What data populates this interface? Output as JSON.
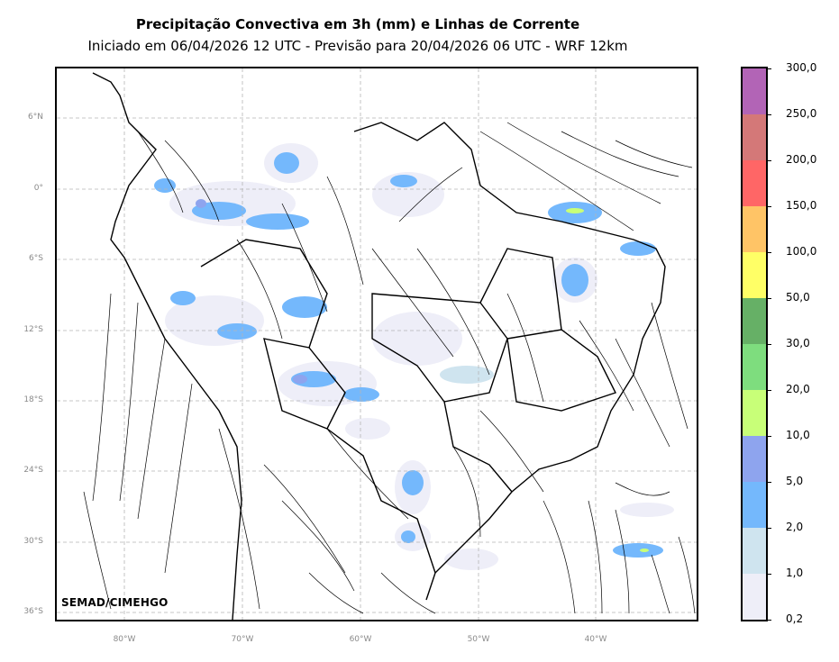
{
  "header": {
    "title": "Precipitação Convectiva em 3h (mm) e Linhas de Corrente",
    "subtitle": "Iniciado em 06/04/2026 12 UTC - Previsão para 20/04/2026 06 UTC - WRF 12km"
  },
  "map": {
    "lat_ticks": [
      "6°N",
      "0°",
      "6°S",
      "12°S",
      "18°S",
      "24°S",
      "30°S",
      "36°S"
    ],
    "lon_ticks": [
      "80°W",
      "70°W",
      "60°W",
      "50°W",
      "40°W"
    ],
    "credit": "SEMAD/CIMEHGO",
    "grid_color": "#b5b5b5",
    "streamline_color": "#000000",
    "border_color": "#000000"
  },
  "colorbar": {
    "labels": [
      "0,2",
      "1,0",
      "2,0",
      "5,0",
      "10,0",
      "20,0",
      "30,0",
      "50,0",
      "100,0",
      "150,0",
      "200,0",
      "250,0",
      "300,0"
    ],
    "colors": [
      "#eeeef8",
      "#cfe4ef",
      "#74b8fc",
      "#8ea4ee",
      "#c8ff78",
      "#7edd7e",
      "#66b066",
      "#ffff66",
      "#ffc466",
      "#ff6666",
      "#d47878",
      "#b264b6"
    ]
  }
}
